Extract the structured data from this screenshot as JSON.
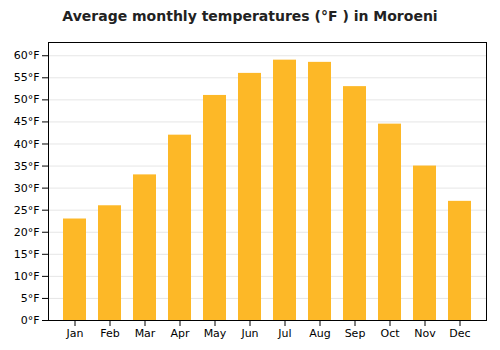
{
  "chart_data": {
    "type": "bar",
    "title": "Average monthly temperatures (°F ) in Moroeni",
    "categories": [
      "Jan",
      "Feb",
      "Mar",
      "Apr",
      "May",
      "Jun",
      "Jul",
      "Aug",
      "Sep",
      "Oct",
      "Nov",
      "Dec"
    ],
    "values": [
      23,
      26,
      33,
      42,
      51,
      56,
      59,
      58.5,
      53,
      44.5,
      35,
      27
    ],
    "color": "#FDB827",
    "ylim": [
      0,
      63
    ],
    "yticks": [
      {
        "value": 0,
        "label": "0°F"
      },
      {
        "value": 5,
        "label": "5°F"
      },
      {
        "value": 10,
        "label": "10°F"
      },
      {
        "value": 15,
        "label": "15°F"
      },
      {
        "value": 20,
        "label": "20°F"
      },
      {
        "value": 25,
        "label": "25°F"
      },
      {
        "value": 30,
        "label": "30°F"
      },
      {
        "value": 35,
        "label": "35°F"
      },
      {
        "value": 40,
        "label": "40°F"
      },
      {
        "value": 45,
        "label": "45°F"
      },
      {
        "value": 50,
        "label": "50°F"
      },
      {
        "value": 55,
        "label": "55°F"
      },
      {
        "value": 60,
        "label": "60°F"
      }
    ],
    "grid": true
  }
}
